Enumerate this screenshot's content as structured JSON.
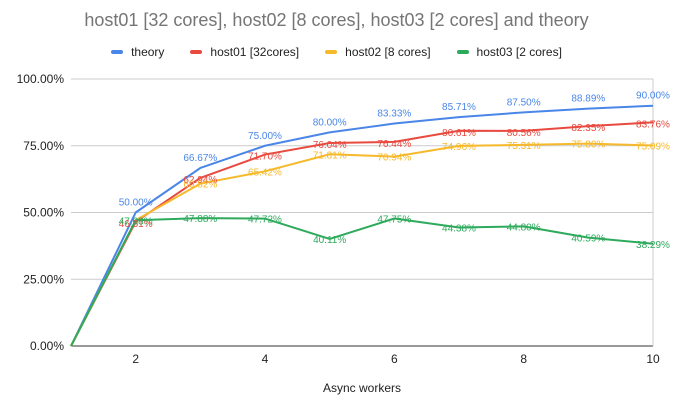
{
  "chart_data": {
    "type": "line",
    "title": "host01 [32 cores], host02 [8 cores], host03 [2 cores] and theory",
    "xlabel": "Async workers",
    "ylabel": "",
    "x": [
      1,
      2,
      3,
      4,
      5,
      6,
      7,
      8,
      9,
      10
    ],
    "xlim": [
      1,
      10
    ],
    "ylim": [
      0,
      1
    ],
    "x_ticks": [
      "2",
      "4",
      "6",
      "8",
      "10"
    ],
    "y_ticks": [
      "0.00%",
      "25.00%",
      "50.00%",
      "75.00%",
      "100.00%"
    ],
    "grid": "horizontal",
    "legend_position": "top",
    "series": [
      {
        "name": "theory",
        "color": "#4a86e8",
        "values": [
          0,
          0.5,
          0.6667,
          0.75,
          0.8,
          0.8333,
          0.8571,
          0.875,
          0.8889,
          0.9
        ],
        "labels": [
          "",
          "50.00%",
          "66.67%",
          "75.00%",
          "80.00%",
          "83.33%",
          "85.71%",
          "87.50%",
          "88.89%",
          "90.00%"
        ]
      },
      {
        "name": "host01 [32cores]",
        "color": "#e84a3f",
        "values": [
          0,
          0.4651,
          0.6294,
          0.717,
          0.7604,
          0.7644,
          0.8061,
          0.8056,
          0.8235,
          0.8376
        ],
        "labels": [
          "",
          "46.51%",
          "62.94%",
          "71.70%",
          "76.04%",
          "76.44%",
          "80.61%",
          "80.56%",
          "82.35%",
          "83.76%"
        ]
      },
      {
        "name": "host02 [8 cores]",
        "color": "#f6b92b",
        "values": [
          0,
          0.4708,
          0.6082,
          0.6542,
          0.7181,
          0.7094,
          0.7496,
          0.7531,
          0.758,
          0.7509
        ],
        "labels": [
          "",
          "",
          "60.82%",
          "65.42%",
          "71.81%",
          "70.94%",
          "74.96%",
          "75.31%",
          "75.80%",
          "75.09%"
        ]
      },
      {
        "name": "host03 [2 cores]",
        "color": "#2eaa5c",
        "values": [
          0,
          0.4708,
          0.4788,
          0.4772,
          0.4011,
          0.4775,
          0.4438,
          0.448,
          0.4059,
          0.3829
        ],
        "labels": [
          "",
          "47.08%",
          "47.88%",
          "47.72%",
          "40.11%",
          "47.75%",
          "44.38%",
          "44.80%",
          "40.59%",
          "38.29%"
        ]
      }
    ]
  }
}
